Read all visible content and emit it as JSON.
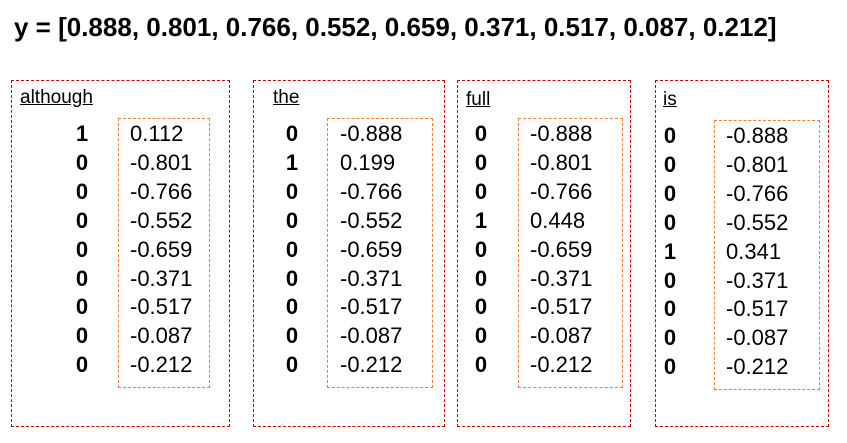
{
  "title": "y = [0.888, 0.801, 0.766, 0.552, 0.659, 0.371, 0.517, 0.087, 0.212]",
  "panels": [
    {
      "word": "although",
      "onehot": [
        1,
        0,
        0,
        0,
        0,
        0,
        0,
        0,
        0
      ],
      "values": [
        0.112,
        -0.801,
        -0.766,
        -0.552,
        -0.659,
        -0.371,
        -0.517,
        -0.087,
        -0.212
      ]
    },
    {
      "word": "the",
      "onehot": [
        0,
        1,
        0,
        0,
        0,
        0,
        0,
        0,
        0
      ],
      "values": [
        -0.888,
        0.199,
        -0.766,
        -0.552,
        -0.659,
        -0.371,
        -0.517,
        -0.087,
        -0.212
      ]
    },
    {
      "word": "full",
      "onehot": [
        0,
        0,
        0,
        1,
        0,
        0,
        0,
        0,
        0
      ],
      "values": [
        -0.888,
        -0.801,
        -0.766,
        0.448,
        -0.659,
        -0.371,
        -0.517,
        -0.087,
        -0.212
      ]
    },
    {
      "word": "is",
      "onehot": [
        0,
        0,
        0,
        0,
        1,
        0,
        0,
        0,
        0
      ],
      "values": [
        -0.888,
        -0.801,
        -0.766,
        -0.552,
        0.341,
        -0.371,
        -0.517,
        -0.087,
        -0.212
      ]
    }
  ]
}
